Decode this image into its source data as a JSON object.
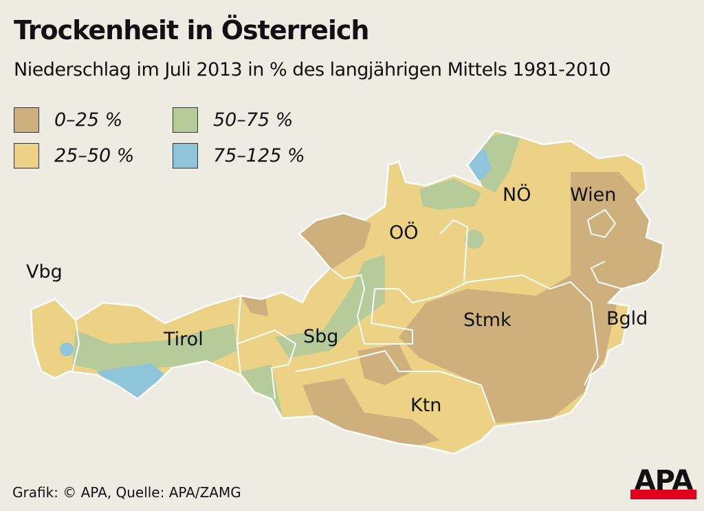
{
  "title": "Trockenheit in Österreich",
  "subtitle": "Niederschlag im Juli 2013 in % des langjährigen Mittels 1981-2010",
  "legend": [
    {
      "label": "0–25 %",
      "color": "#cdb07c"
    },
    {
      "label": "25–50 %",
      "color": "#ebd285"
    },
    {
      "label": "50–75 %",
      "color": "#b6cb9a"
    },
    {
      "label": "75–125 %",
      "color": "#8ec5da"
    }
  ],
  "regions": {
    "vbg": "Vbg",
    "tirol": "Tirol",
    "sbg": "Sbg",
    "ooe": "OÖ",
    "noe": "NÖ",
    "wien": "Wien",
    "stmk": "Stmk",
    "bgld": "Bgld",
    "ktn": "Ktn"
  },
  "credit": "Grafik: © APA, Quelle: APA/ZAMG",
  "logo": "APA"
}
